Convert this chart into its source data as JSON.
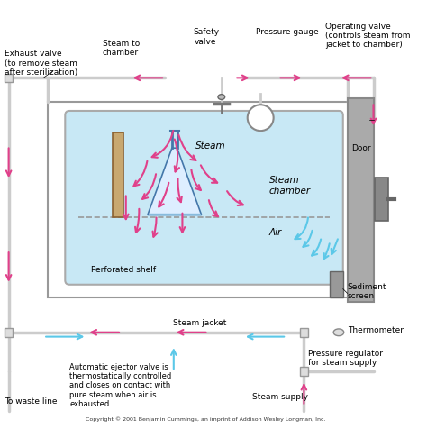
{
  "bg_color": "#ffffff",
  "title": "",
  "copyright": "Copyright © 2001 Benjamin Cummings, an imprint of Addison Wesley Longman, Inc.",
  "steam_color": "#c8e8f5",
  "arrow_steam_color": "#e0408a",
  "arrow_air_color": "#5bc8e8",
  "pipe_color": "#bbbbbb",
  "chamber_border": "#aaaaaa",
  "door_color": "#888888",
  "shelf_color": "#aaaaaa",
  "labels": {
    "exhaust_valve": "Exhaust valve\n(to remove steam\nafter sterilization)",
    "steam_to_chamber": "Steam to\nchamber",
    "safety_valve": "Safety\nvalve",
    "pressure_gauge": "Pressure gauge",
    "operating_valve": "Operating valve\n(controls steam from\njacket to chamber)",
    "steam": "Steam",
    "steam_chamber": "Steam\nchamber",
    "air": "Air",
    "perforated_shelf": "Perforated shelf",
    "door": "Door",
    "sediment_screen": "Sediment\nscreen",
    "thermometer": "Thermometer",
    "steam_jacket": "Steam jacket",
    "auto_ejector": "Automatic ejector valve is\nthermostatically controlled\nand closes on contact with\npure steam when air is\nexhausted.",
    "pressure_regulator": "Pressure regulator\nfor steam supply",
    "steam_supply": "Steam supply",
    "waste_line": "To waste line"
  }
}
